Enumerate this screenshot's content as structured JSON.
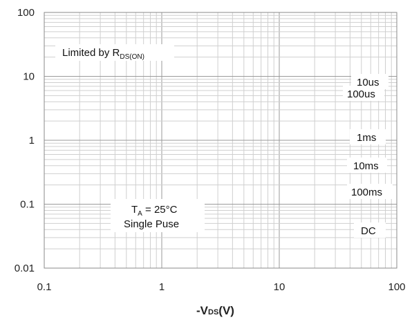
{
  "chart_data": {
    "type": "line",
    "title": "",
    "x_scale": "log",
    "y_scale": "log",
    "xlim": [
      0.1,
      100
    ],
    "ylim": [
      0.01,
      100
    ],
    "grid": true,
    "x_ticks": [
      "0.1",
      "1",
      "10",
      "100"
    ],
    "y_ticks": [
      "100",
      "10",
      "1",
      "0.1",
      "0.01"
    ],
    "xlabel": {
      "prefix": "-V",
      "sub": "DS",
      "suffix": "(V)"
    },
    "ylabel": "",
    "series": [],
    "annotations": {
      "limit": {
        "main": "Limited by R",
        "sub": "DS(ON)"
      },
      "pulse_labels": [
        "10us",
        "100us",
        "1ms",
        "10ms",
        "100ms",
        "DC"
      ],
      "conditions": {
        "t_main": "T",
        "t_sub": "A",
        "t_rest": " = 25°C",
        "line2": "Single Puse"
      }
    }
  }
}
